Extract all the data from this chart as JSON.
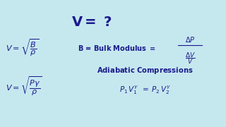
{
  "background_color": "#c5e8ef",
  "text_color": "#1a1a8c",
  "figsize": [
    3.2,
    1.8
  ],
  "dpi": 100
}
